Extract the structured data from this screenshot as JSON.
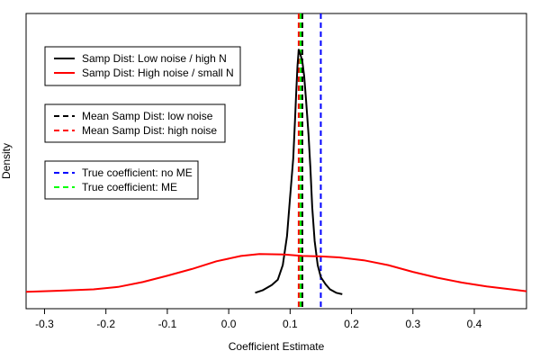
{
  "chart_data": {
    "type": "line",
    "xlabel": "Coefficient Estimate",
    "ylabel": "Density",
    "xlim": [
      -0.33,
      0.485
    ],
    "ylim": [
      -1,
      60
    ],
    "x_ticks": [
      -0.3,
      -0.2,
      -0.1,
      0.0,
      0.1,
      0.2,
      0.3,
      0.4
    ],
    "x_tick_labels": [
      "-0.3",
      "-0.2",
      "-0.1",
      "0.0",
      "0.1",
      "0.2",
      "0.3",
      "0.4"
    ],
    "y_ticks_shown": false,
    "grid": false,
    "series": [
      {
        "name": "Samp Dist: Low noise / high N",
        "color": "#000000",
        "style": "solid",
        "x": [
          0.043,
          0.055,
          0.07,
          0.08,
          0.088,
          0.095,
          0.1,
          0.105,
          0.108,
          0.11,
          0.112,
          0.114,
          0.117,
          0.12,
          0.123,
          0.126,
          0.13,
          0.133,
          0.136,
          0.14,
          0.145,
          0.15,
          0.158,
          0.165,
          0.175,
          0.185
        ],
        "y": [
          2.3,
          2.8,
          3.9,
          5.0,
          8.0,
          14.0,
          22.0,
          30.0,
          38.0,
          44.0,
          49.0,
          52.5,
          51.5,
          50.0,
          47.0,
          42.0,
          35.0,
          28.0,
          20.0,
          13.0,
          8.0,
          5.5,
          4.0,
          3.0,
          2.3,
          2.0
        ]
      },
      {
        "name": "Samp Dist: High noise / small N",
        "color": "#ff0000",
        "style": "solid",
        "x": [
          -0.33,
          -0.28,
          -0.22,
          -0.18,
          -0.14,
          -0.1,
          -0.06,
          -0.02,
          0.02,
          0.05,
          0.09,
          0.12,
          0.15,
          0.18,
          0.22,
          0.26,
          0.3,
          0.34,
          0.38,
          0.42,
          0.46,
          0.485
        ],
        "y": [
          2.5,
          2.7,
          3.0,
          3.5,
          4.5,
          5.8,
          7.2,
          8.8,
          9.9,
          10.3,
          10.2,
          9.9,
          9.8,
          9.6,
          9.0,
          8.0,
          6.6,
          5.4,
          4.4,
          3.6,
          3.0,
          2.6
        ]
      }
    ],
    "vlines": [
      {
        "name": "Mean Samp Dist: low noise",
        "x": 0.12,
        "color": "#000000",
        "style": "dashed"
      },
      {
        "name": "Mean Samp Dist: high noise",
        "x": 0.114,
        "color": "#ff0000",
        "style": "dashed"
      },
      {
        "name": "True coefficient: no ME",
        "x": 0.15,
        "color": "#0000ff",
        "style": "dashed"
      },
      {
        "name": "True coefficient: ME",
        "x": 0.117,
        "color": "#00ff00",
        "style": "dashed"
      }
    ],
    "legends": [
      {
        "placement": "top-left",
        "entries": [
          {
            "label": "Samp Dist: Low noise / high N",
            "color": "#000000",
            "style": "solid"
          },
          {
            "label": "Samp Dist: High noise / small N",
            "color": "#ff0000",
            "style": "solid"
          }
        ]
      },
      {
        "placement": "upper-left",
        "entries": [
          {
            "label": "Mean Samp Dist: low noise",
            "color": "#000000",
            "style": "dashed"
          },
          {
            "label": "Mean Samp Dist: high noise",
            "color": "#ff0000",
            "style": "dashed"
          }
        ]
      },
      {
        "placement": "middle-left",
        "entries": [
          {
            "label": "True coefficient: no ME",
            "color": "#0000ff",
            "style": "dashed"
          },
          {
            "label": "True coefficient: ME",
            "color": "#00ff00",
            "style": "dashed"
          }
        ]
      }
    ]
  }
}
